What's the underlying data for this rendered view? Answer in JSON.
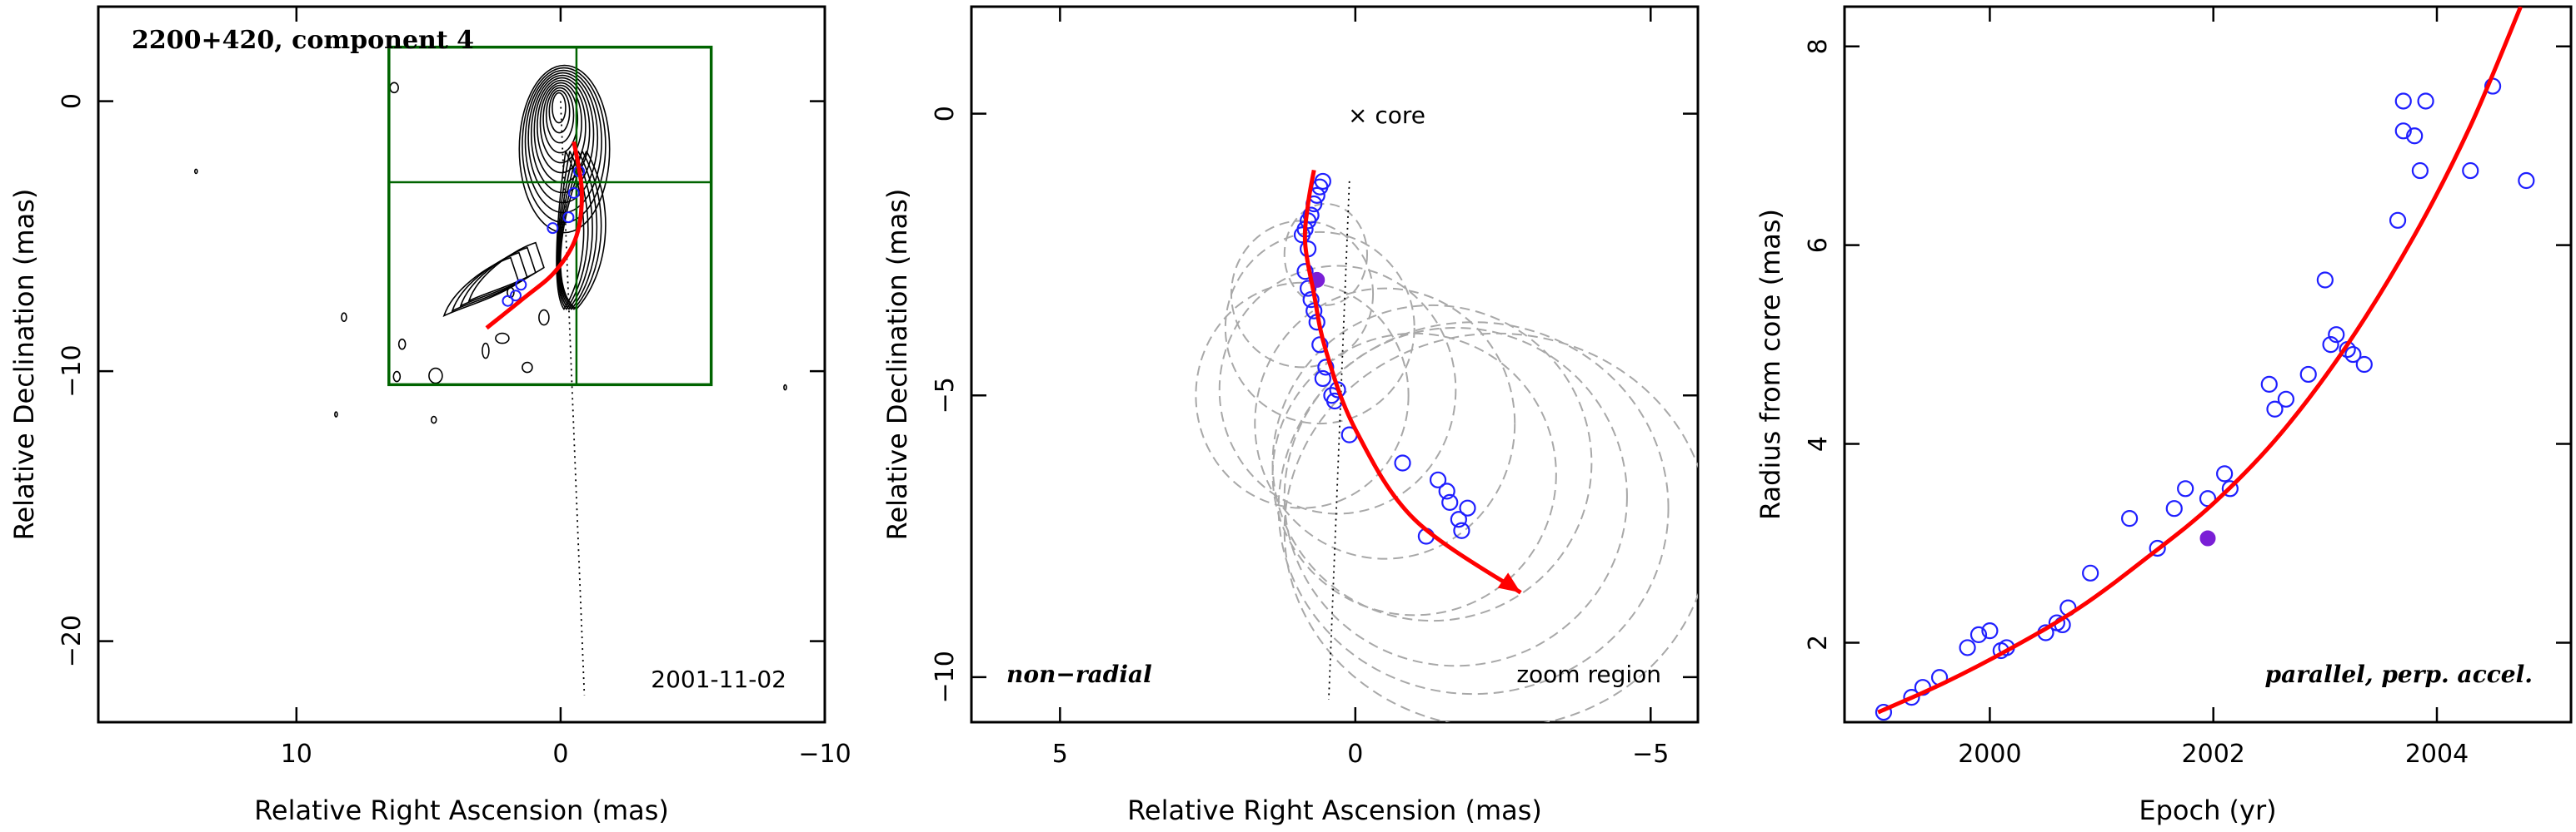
{
  "chart_data": [
    {
      "type": "scatter",
      "title": "2200+420, component 4",
      "annotations": [
        "2001-11-02"
      ],
      "xlabel": "Relative Right Ascension (mas)",
      "ylabel": "Relative Declination (mas)",
      "xlim": [
        17.5,
        -10
      ],
      "ylim": [
        -23,
        3.5
      ],
      "x_ticks": [
        10,
        0,
        -10
      ],
      "x_tick_labels": [
        "10",
        "0",
        "−10"
      ],
      "y_ticks": [
        0,
        -10,
        -20
      ],
      "y_tick_labels": [
        "0",
        "−10",
        "−20"
      ],
      "zoom_box": {
        "x": [
          6.5,
          -5.7
        ],
        "y": [
          2,
          -10.5
        ],
        "divider_x": -0.6,
        "divider_y": -3
      },
      "track": [
        [
          -0.5,
          -1.5
        ],
        [
          -0.8,
          -3.3
        ],
        [
          -0.6,
          -5
        ],
        [
          0.2,
          -6.3
        ],
        [
          1.4,
          -7.3
        ],
        [
          2.8,
          -8.4
        ]
      ],
      "points": [
        [
          -0.7,
          -2.6
        ],
        [
          -0.5,
          -3.4
        ],
        [
          -0.3,
          -4.3
        ],
        [
          0.3,
          -4.7
        ],
        [
          1.5,
          -6.8
        ],
        [
          1.7,
          -7.2
        ],
        [
          2.0,
          -7.4
        ]
      ],
      "guide_line": [
        [
          0,
          0
        ],
        [
          -0.9,
          -22
        ]
      ]
    },
    {
      "type": "scatter",
      "annotations": [
        "× core",
        "non−radial",
        "zoom region"
      ],
      "xlabel": "Relative Right Ascension (mas)",
      "ylabel": "Relative Declination (mas)",
      "xlim": [
        6.5,
        -5.8
      ],
      "ylim": [
        -10.8,
        1.9
      ],
      "x_ticks": [
        5,
        0,
        -5
      ],
      "x_tick_labels": [
        "5",
        "0",
        "−5"
      ],
      "y_ticks": [
        0,
        -5,
        -10
      ],
      "y_tick_labels": [
        "0",
        "−5",
        "−10"
      ],
      "track": [
        [
          0.7,
          -1.0
        ],
        [
          0.8,
          -1.6
        ],
        [
          0.85,
          -2.3
        ],
        [
          0.7,
          -3.2
        ],
        [
          0.5,
          -4.2
        ],
        [
          0.0,
          -5.6
        ],
        [
          -1.0,
          -7.2
        ],
        [
          -2.8,
          -8.5
        ]
      ],
      "points": [
        [
          0.55,
          -1.2
        ],
        [
          0.6,
          -1.3
        ],
        [
          0.65,
          -1.45
        ],
        [
          0.7,
          -1.6
        ],
        [
          0.75,
          -1.8
        ],
        [
          0.8,
          -1.9
        ],
        [
          0.85,
          -2.05
        ],
        [
          0.9,
          -2.15
        ],
        [
          0.8,
          -2.4
        ],
        [
          0.85,
          -2.8
        ],
        [
          0.8,
          -3.1
        ],
        [
          0.75,
          -3.3
        ],
        [
          0.7,
          -3.5
        ],
        [
          0.65,
          -3.7
        ],
        [
          0.6,
          -4.1
        ],
        [
          0.5,
          -4.5
        ],
        [
          0.55,
          -4.7
        ],
        [
          0.3,
          -4.9
        ],
        [
          0.4,
          -5.0
        ],
        [
          0.35,
          -5.1
        ],
        [
          0.1,
          -5.7
        ],
        [
          -0.8,
          -6.2
        ],
        [
          -1.4,
          -6.5
        ],
        [
          -1.55,
          -6.7
        ],
        [
          -1.6,
          -6.9
        ],
        [
          -1.9,
          -7.0
        ],
        [
          -1.75,
          -7.2
        ],
        [
          -1.8,
          -7.4
        ],
        [
          -1.2,
          -7.5
        ]
      ],
      "highlight": [
        [
          0.65,
          -2.95
        ]
      ],
      "ellipses": [
        [
          0.9,
          -3.2,
          1.2,
          1.3
        ],
        [
          0.6,
          -3.8,
          1.6,
          1.7
        ],
        [
          0.3,
          -4.9,
          2.0,
          2.2
        ],
        [
          0.9,
          -5.0,
          1.8,
          2.0
        ],
        [
          -0.5,
          -5.5,
          2.2,
          2.4
        ],
        [
          -1.3,
          -6.2,
          2.7,
          2.8
        ],
        [
          -2.0,
          -7.0,
          3.3,
          3.3
        ],
        [
          -2.4,
          -7.4,
          3.6,
          3.5
        ],
        [
          -1.7,
          -6.8,
          2.9,
          3.0
        ],
        [
          -1.0,
          -6.4,
          2.4,
          2.5
        ],
        [
          0.5,
          -2.5,
          0.7,
          0.9
        ]
      ],
      "guide_line": [
        [
          0.1,
          -1.2
        ],
        [
          0.45,
          -10.4
        ]
      ]
    },
    {
      "type": "scatter",
      "annotations": [
        "parallel, perp. accel."
      ],
      "xlabel": "Epoch (yr)",
      "ylabel": "Radius from core (mas)",
      "xlim": [
        1998.7,
        2005.2
      ],
      "ylim": [
        1.2,
        8.4
      ],
      "x_ticks": [
        2000,
        2002,
        2004
      ],
      "x_tick_labels": [
        "2000",
        "2002",
        "2004"
      ],
      "y_ticks": [
        2,
        4,
        6,
        8
      ],
      "y_tick_labels": [
        "2",
        "4",
        "6",
        "8"
      ],
      "fit_curve": [
        [
          1999.0,
          1.3
        ],
        [
          1999.6,
          1.6
        ],
        [
          2000.2,
          1.95
        ],
        [
          2000.8,
          2.35
        ],
        [
          2001.4,
          2.85
        ],
        [
          2002.0,
          3.4
        ],
        [
          2002.6,
          4.1
        ],
        [
          2003.2,
          5.0
        ],
        [
          2003.8,
          6.1
        ],
        [
          2004.3,
          7.2
        ],
        [
          2004.75,
          8.4
        ]
      ],
      "points": [
        [
          1999.05,
          1.3
        ],
        [
          1999.3,
          1.45
        ],
        [
          1999.4,
          1.55
        ],
        [
          1999.55,
          1.65
        ],
        [
          1999.8,
          1.95
        ],
        [
          1999.9,
          2.08
        ],
        [
          2000.0,
          2.12
        ],
        [
          2000.1,
          1.92
        ],
        [
          2000.15,
          1.95
        ],
        [
          2000.5,
          2.1
        ],
        [
          2000.6,
          2.2
        ],
        [
          2000.65,
          2.18
        ],
        [
          2000.7,
          2.35
        ],
        [
          2000.9,
          2.7
        ],
        [
          2001.25,
          3.25
        ],
        [
          2001.5,
          2.95
        ],
        [
          2001.65,
          3.35
        ],
        [
          2001.75,
          3.55
        ],
        [
          2001.95,
          3.45
        ],
        [
          2002.1,
          3.7
        ],
        [
          2002.15,
          3.55
        ],
        [
          2002.5,
          4.6
        ],
        [
          2002.55,
          4.35
        ],
        [
          2002.65,
          4.45
        ],
        [
          2002.85,
          4.7
        ],
        [
          2003.0,
          5.65
        ],
        [
          2003.05,
          5.0
        ],
        [
          2003.1,
          5.1
        ],
        [
          2003.2,
          4.95
        ],
        [
          2003.25,
          4.9
        ],
        [
          2003.35,
          4.8
        ],
        [
          2003.65,
          6.25
        ],
        [
          2003.7,
          7.45
        ],
        [
          2003.7,
          7.15
        ],
        [
          2003.8,
          7.1
        ],
        [
          2003.85,
          6.75
        ],
        [
          2003.9,
          7.45
        ],
        [
          2004.3,
          6.75
        ],
        [
          2004.5,
          7.6
        ],
        [
          2004.8,
          6.65
        ]
      ],
      "highlight": [
        [
          2001.95,
          3.05
        ]
      ]
    }
  ]
}
